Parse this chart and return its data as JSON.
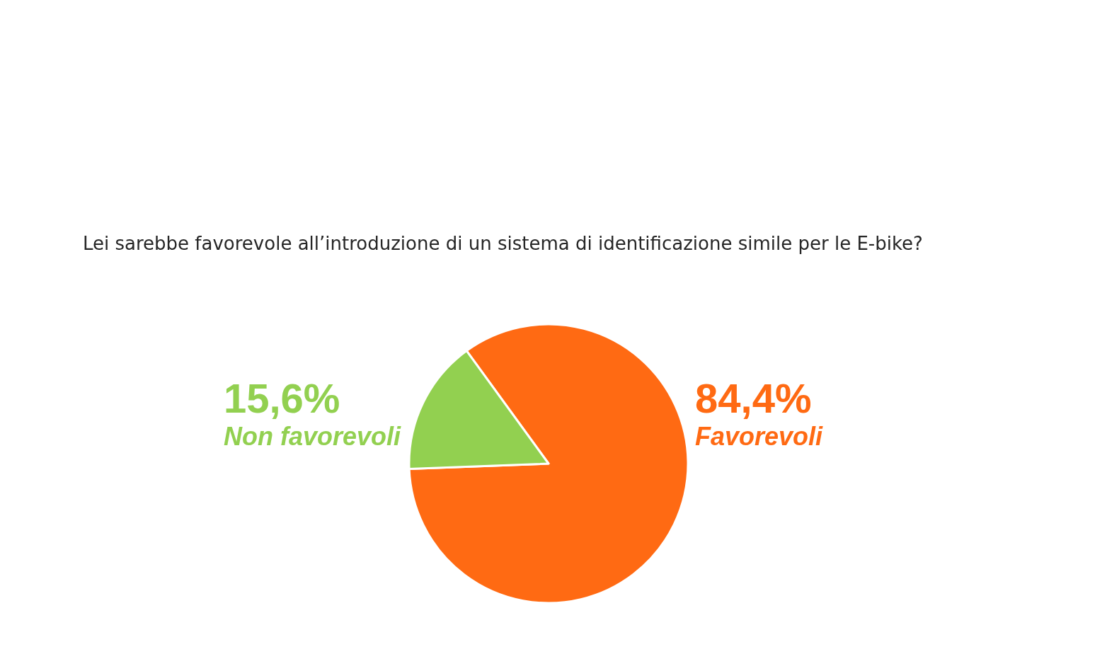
{
  "chart_data": {
    "type": "pie",
    "title": "Lei sarebbe favorevole all’introduzione di un sistema di identificazione simile per le E-bike?",
    "categories": [
      "Favorevoli",
      "Non favorevoli"
    ],
    "values": [
      84.4,
      15.6
    ],
    "colors": [
      "#ff6a13",
      "#92d050"
    ],
    "value_labels": [
      "84,4%",
      "15,6%"
    ]
  }
}
